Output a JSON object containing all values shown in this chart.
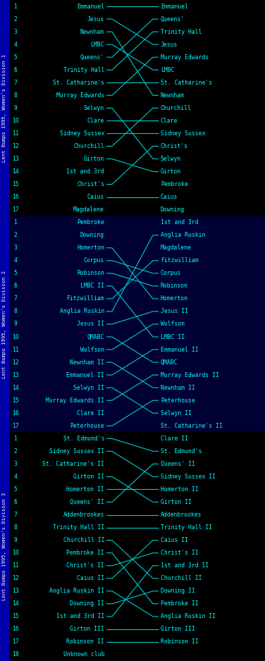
{
  "bg_div1": "#000000",
  "bg_div2": "#000033",
  "bg_div3": "#000000",
  "sidebar_bg": "#0000aa",
  "line_color": "#00cccc",
  "text_color": "#00ffff",
  "sidebar_text_color": "#ffffff",
  "fig_bg": "#000000",
  "divisions": [
    {
      "label": "Lent Bumps 1995, Women's Division 1",
      "bg": "#000000",
      "start": [
        "Emmanuel",
        "Jesus",
        "Newnham",
        "LMBC",
        "Queens'",
        "Trinity Hall",
        "St. Catharine's",
        "Murray Edwards",
        "Selwyn",
        "Clare",
        "Sidney Sussex",
        "Churchill",
        "Girton",
        "1st and 3rd",
        "Christ's",
        "Caius",
        "Magdalene"
      ],
      "end": [
        "Emmanuel",
        "Queens'",
        "Trinity Hall",
        "Jesus",
        "Murray Edwards",
        "LMBC",
        "St. Catharine's",
        "Newnham",
        "Churchill",
        "Clare",
        "Sidney Sussex",
        "Christ's",
        "Selwyn",
        "Girton",
        "Pembroke",
        "Caius",
        "Downing"
      ]
    },
    {
      "label": "Lent Bumps 1995, Women's Division 2",
      "bg": "#000033",
      "start": [
        "Pembroke",
        "Downing",
        "Homerton",
        "Corpus",
        "Robinson",
        "LMBC II",
        "Fitzwilliam",
        "Anglia Ruskin",
        "Jesus II",
        "QMABC",
        "Wolfson",
        "Newnham II",
        "Emmanuel II",
        "Selwyn II",
        "Murray Edwards II",
        "Clare II",
        "Peterhouse"
      ],
      "end": [
        "1st and 3rd",
        "Anglia Ruskin",
        "Magdalene",
        "Fitzwilliam",
        "Corpus",
        "Robinson",
        "Homerton",
        "Jesus II",
        "Wolfson",
        "LMBC II",
        "Emmanuel II",
        "QMABC",
        "Murray Edwards II",
        "Newnham II",
        "Peterhouse",
        "Selwyn II",
        "St. Catharine's II"
      ]
    },
    {
      "label": "Lent Bumps 1995, Women's Division 3",
      "bg": "#000000",
      "start": [
        "St. Edmund's",
        "Sidney Sussex II",
        "St. Catharine's II",
        "Girton II",
        "Homerton II",
        "Queens' II",
        "Addenbrookes",
        "Trinity Hall II",
        "Churchill II",
        "Pembroke II",
        "Christ's II",
        "Caius II",
        "Anglia Ruskin II",
        "Downing II",
        "1st and 3rd II",
        "Girton III",
        "Robinson II",
        "Unknown club"
      ],
      "end": [
        "Clare II",
        "St. Edmund's",
        "Queens' II",
        "Sidney Sussex II",
        "Homerton II",
        "Girton II",
        "Addenbrookes",
        "Trinity Hall II",
        "Caius II",
        "Christ's II",
        "1st and 3rd II",
        "Churchill II",
        "Downing II",
        "Pembroke II",
        "Anglia Ruskin II",
        "Girton III",
        "Robinson II",
        ""
      ]
    }
  ]
}
